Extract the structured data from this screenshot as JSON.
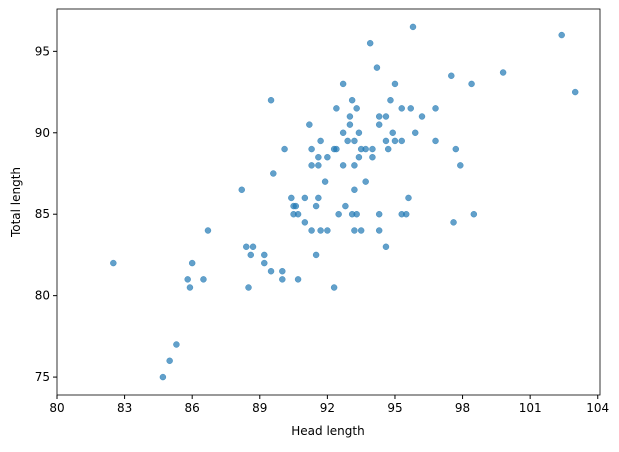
{
  "chart_data": {
    "type": "scatter",
    "x_label": "Head length",
    "y_label": "Total length",
    "color": "#1f77b4",
    "xlim": [
      80,
      104.1
    ],
    "ylim": [
      73.9,
      97.6
    ],
    "xticks": [
      80,
      83,
      86,
      89,
      92,
      95,
      98,
      101,
      104
    ],
    "yticks": [
      75,
      80,
      85,
      90,
      95
    ],
    "x": [
      82.5,
      84.7,
      85.0,
      85.3,
      85.8,
      85.9,
      86.0,
      86.5,
      86.7,
      88.2,
      88.4,
      88.5,
      88.6,
      88.7,
      89.2,
      89.2,
      89.5,
      89.5,
      89.6,
      90.0,
      90.0,
      90.1,
      90.4,
      90.5,
      90.5,
      90.6,
      90.7,
      90.7,
      91.0,
      91.0,
      91.2,
      91.3,
      91.3,
      91.3,
      91.5,
      91.5,
      91.6,
      91.6,
      91.6,
      91.7,
      91.7,
      91.9,
      92.0,
      92.0,
      92.3,
      92.3,
      92.4,
      92.4,
      92.5,
      92.7,
      92.7,
      92.7,
      92.8,
      92.9,
      93.0,
      93.0,
      93.1,
      93.1,
      93.2,
      93.2,
      93.2,
      93.3,
      93.2,
      93.3,
      93.4,
      93.4,
      93.5,
      93.5,
      93.7,
      93.7,
      93.9,
      94.0,
      94.0,
      94.2,
      94.3,
      94.3,
      94.3,
      94.3,
      94.6,
      94.6,
      94.6,
      94.7,
      94.8,
      94.9,
      95.0,
      95.0,
      95.3,
      95.3,
      95.3,
      95.5,
      95.6,
      95.7,
      95.8,
      95.9,
      96.2,
      96.8,
      96.8,
      97.5,
      97.6,
      97.7,
      97.9,
      98.4,
      98.5,
      99.8,
      102.4,
      103.0
    ],
    "y": [
      82,
      75,
      76,
      77,
      81,
      80.5,
      82,
      81,
      84,
      86.5,
      83,
      80.5,
      82.5,
      83,
      82.5,
      82,
      81.5,
      92,
      87.5,
      81.5,
      81,
      89,
      86,
      85,
      85.5,
      85.5,
      85,
      81,
      86,
      84.5,
      90.5,
      88,
      89,
      84,
      82.5,
      85.5,
      88.5,
      86,
      88,
      89.5,
      84,
      87,
      88.5,
      84,
      80.5,
      89,
      89,
      91.5,
      85,
      90,
      93,
      88,
      85.5,
      89.5,
      91,
      90.5,
      85,
      92,
      84,
      88,
      86.5,
      85,
      89.5,
      91.5,
      88.5,
      90,
      89,
      84,
      87,
      89,
      95.5,
      88.5,
      89,
      94,
      90.5,
      85,
      84,
      91,
      89.5,
      91,
      83,
      89,
      92,
      90,
      93,
      89.5,
      89.5,
      85,
      91.5,
      85,
      86,
      91.5,
      96.5,
      90,
      91,
      89.5,
      91.5,
      93.5,
      84.5,
      89,
      88,
      93,
      85,
      93.7,
      96,
      92.5
    ]
  }
}
